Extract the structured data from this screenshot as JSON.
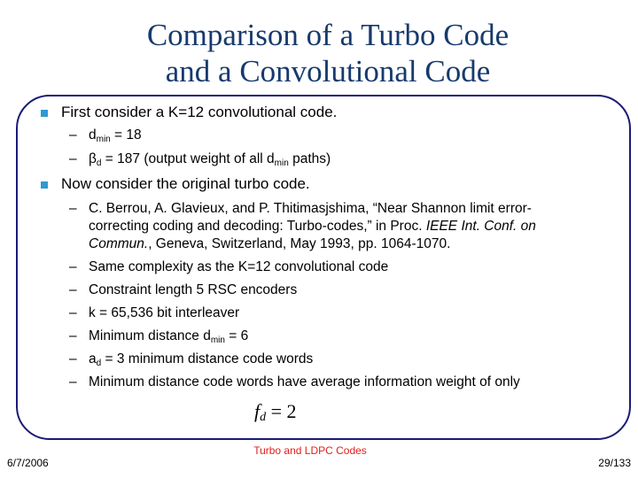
{
  "title": {
    "line1": "Comparison of a Turbo Code",
    "line2": "and a Convolutional Code"
  },
  "bullets": [
    {
      "text": "First consider a K=12 convolutional code.",
      "subs": [
        {
          "pre": "d",
          "sub": "min",
          "post": " = 18"
        },
        {
          "pre": "β",
          "sub": "d",
          "post": " = 187 (output weight of all d",
          "sub2": "min",
          "post2": " paths)"
        }
      ]
    },
    {
      "text": "Now consider the original turbo code.",
      "ref": {
        "line1": "C. Berrou, A. Glavieux, and P. Thitimasjshima, “Near Shannon limit error-",
        "line2a": "correcting coding and decoding: Turbo-codes,” in Proc. ",
        "line2b": "IEEE Int. Conf. on",
        "line3a": "Commun.",
        "line3b": ",  Geneva, Switzerland, May 1993, pp. 1064-1070."
      },
      "subs": [
        {
          "text": "Same complexity as the K=12 convolutional code"
        },
        {
          "text": "Constraint length 5 RSC encoders"
        },
        {
          "text": "k = 65,536 bit interleaver"
        },
        {
          "pre": "Minimum distance d",
          "sub": "min",
          "post": " = 6"
        },
        {
          "pre": "a",
          "sub": "d",
          "post": " = 3 minimum distance code words"
        },
        {
          "text": "Minimum distance code words have average information weight of only"
        }
      ]
    }
  ],
  "formula": {
    "var": "f",
    "sub": "d",
    "rhs": " = 2"
  },
  "dash": "–",
  "footer": {
    "center": "Turbo and LDPC Codes",
    "date": "6/7/2006",
    "page": "29/133"
  },
  "colors": {
    "title": "#173a6e",
    "frame": "#1a1a78",
    "bullet": "#2e9ad0",
    "footer_center": "#e0201e"
  }
}
